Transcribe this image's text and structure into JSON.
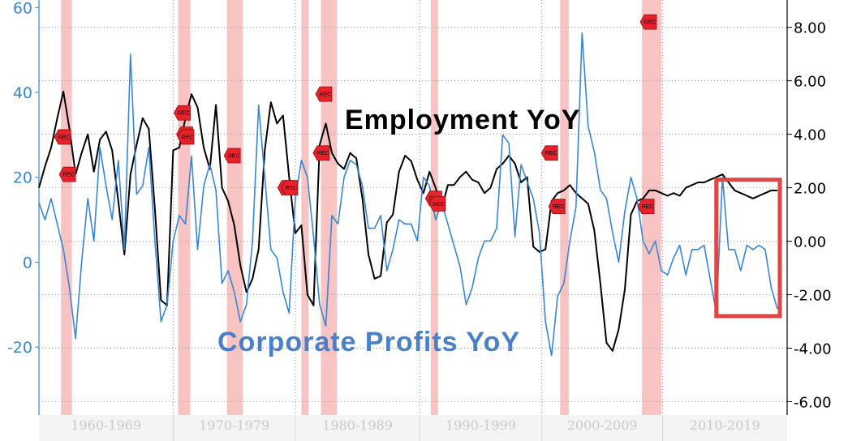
{
  "chart_data": {
    "type": "line",
    "title": "",
    "annotations": {
      "employment_label": "Employment YoY",
      "profits_label": "Corporate Profits YoY"
    },
    "colors": {
      "employment": "#000000",
      "profits": "#3a86d0",
      "recession": "#f6b9b9",
      "highlight_box": "#e04545",
      "rec_marker": "#e8212b",
      "left_axis": "#3a86d0"
    },
    "x_categories": [
      "1960-1969",
      "1970-1979",
      "1980-1989",
      "1990-1999",
      "2000-2009",
      "2010-2019"
    ],
    "x_range": [
      1958.5,
      2019.8
    ],
    "x_category_bounds": [
      1958.5,
      1969.5,
      1979.5,
      1989.7,
      1999.7,
      2009.6,
      2019.8
    ],
    "left_axis": {
      "label": "",
      "ticks": [
        "60",
        "40",
        "20",
        "0",
        "-20"
      ],
      "tick_values": [
        60,
        40,
        20,
        0,
        -20
      ],
      "range": [
        -36,
        61
      ]
    },
    "right_axis": {
      "label": "",
      "ticks": [
        "8.00",
        "6.00",
        "4.00",
        "2.00",
        "0.00",
        "-2.00",
        "-4.00",
        "-6.00"
      ],
      "tick_values": [
        8,
        6,
        4,
        2,
        0,
        -2,
        -4,
        -6
      ],
      "range": [
        -6.5,
        8.9
      ]
    },
    "grid": true,
    "recessions": [
      [
        1960.3,
        1961.2
      ],
      [
        1969.9,
        1970.9
      ],
      [
        1973.9,
        1975.2
      ],
      [
        1980.0,
        1980.6
      ],
      [
        1981.6,
        1982.9
      ],
      [
        1990.6,
        1991.2
      ],
      [
        2001.2,
        2001.9
      ],
      [
        2007.9,
        2009.5
      ]
    ],
    "rec_label": "REC",
    "rec_markers": [
      {
        "x": 1960.5,
        "y_right": 3.9
      },
      {
        "x": 1960.9,
        "y_right": 2.5
      },
      {
        "x": 1970.3,
        "y_right": 4.8
      },
      {
        "x": 1970.5,
        "y_right": 4.0
      },
      {
        "x": 1970.6,
        "y_right": 3.9
      },
      {
        "x": 1974.4,
        "y_right": 3.2
      },
      {
        "x": 1978.8,
        "y_right": 2.0
      },
      {
        "x": 1979.1,
        "y_right": 2.0
      },
      {
        "x": 1981.9,
        "y_right": 5.5
      },
      {
        "x": 1981.7,
        "y_right": 3.3
      },
      {
        "x": 1990.9,
        "y_right": 1.6
      },
      {
        "x": 1991.2,
        "y_right": 1.4
      },
      {
        "x": 2000.4,
        "y_right": 3.3
      },
      {
        "x": 2001.0,
        "y_right": 1.3
      },
      {
        "x": 2008.5,
        "y_right": 8.2
      },
      {
        "x": 2008.3,
        "y_right": 1.3
      }
    ],
    "highlight_box": {
      "x": [
        2014.0,
        2019.2
      ],
      "y_right": [
        2.3,
        -2.8
      ]
    },
    "series": [
      {
        "name": "Employment YoY",
        "axis": "right",
        "x": [
          1958.5,
          1959.0,
          1959.5,
          1960.0,
          1960.5,
          1961.0,
          1961.5,
          1962.0,
          1962.5,
          1963.0,
          1963.5,
          1964.0,
          1964.5,
          1965.0,
          1965.5,
          1966.0,
          1966.5,
          1967.0,
          1967.5,
          1968.0,
          1968.5,
          1969.0,
          1969.5,
          1970.0,
          1970.5,
          1971.0,
          1971.5,
          1972.0,
          1972.5,
          1973.0,
          1973.5,
          1974.0,
          1974.5,
          1975.0,
          1975.5,
          1976.0,
          1976.5,
          1977.0,
          1977.5,
          1978.0,
          1978.5,
          1979.0,
          1979.5,
          1980.0,
          1980.5,
          1981.0,
          1981.5,
          1982.0,
          1982.5,
          1983.0,
          1983.5,
          1984.0,
          1984.5,
          1985.0,
          1985.5,
          1986.0,
          1986.5,
          1987.0,
          1987.5,
          1988.0,
          1988.5,
          1989.0,
          1989.5,
          1990.0,
          1990.5,
          1991.0,
          1991.5,
          1992.0,
          1992.5,
          1993.0,
          1993.5,
          1994.0,
          1994.5,
          1995.0,
          1995.5,
          1996.0,
          1996.5,
          1997.0,
          1997.5,
          1998.0,
          1998.5,
          1999.0,
          1999.5,
          2000.0,
          2000.5,
          2001.0,
          2001.5,
          2002.0,
          2002.5,
          2003.0,
          2003.5,
          2004.0,
          2004.5,
          2005.0,
          2005.5,
          2006.0,
          2006.5,
          2007.0,
          2007.5,
          2008.0,
          2008.5,
          2009.0,
          2009.5,
          2010.0,
          2010.5,
          2011.0,
          2011.5,
          2012.0,
          2012.5,
          2013.0,
          2013.5,
          2014.0,
          2014.5,
          2015.0,
          2015.5,
          2016.0,
          2016.5,
          2017.0,
          2017.5,
          2018.0,
          2018.5,
          2019.0
        ],
        "values": [
          2.0,
          2.8,
          3.5,
          4.6,
          5.6,
          4.2,
          2.5,
          3.3,
          4.0,
          2.6,
          3.8,
          4.1,
          3.4,
          1.5,
          -0.5,
          2.5,
          3.6,
          4.6,
          4.2,
          1.2,
          -2.2,
          -2.4,
          3.4,
          3.5,
          4.6,
          5.5,
          5.0,
          3.5,
          2.7,
          5.1,
          2.0,
          1.5,
          0.6,
          -0.9,
          -1.9,
          -1.4,
          -0.3,
          3.4,
          5.2,
          4.4,
          4.7,
          2.4,
          0.3,
          0.6,
          -2.0,
          -2.4,
          3.6,
          4.4,
          3.3,
          2.9,
          2.7,
          3.3,
          3.1,
          1.6,
          -0.5,
          -1.4,
          -1.3,
          0.7,
          1.0,
          2.6,
          3.2,
          3.0,
          2.3,
          1.8,
          2.6,
          2.0,
          1.2,
          2.1,
          2.1,
          2.4,
          2.6,
          2.3,
          2.2,
          1.8,
          2.0,
          2.7,
          2.9,
          3.2,
          2.9,
          2.2,
          2.4,
          -0.2,
          -0.4,
          -0.3,
          1.5,
          1.8,
          1.9,
          2.1,
          1.8,
          1.6,
          1.4,
          0.4,
          -1.6,
          -3.8,
          -4.1,
          -3.3,
          -1.8,
          1.0,
          1.5,
          1.6,
          1.9,
          1.9,
          1.8,
          1.7,
          1.8,
          1.7,
          2.0,
          2.1,
          2.2,
          2.2,
          2.3,
          2.4,
          2.5,
          2.2,
          1.9,
          1.8,
          1.7,
          1.6,
          1.7,
          1.8,
          1.9,
          1.9
        ]
      },
      {
        "name": "Corporate Profits YoY",
        "axis": "left",
        "x": [
          1958.5,
          1959.0,
          1959.5,
          1960.0,
          1960.5,
          1961.0,
          1961.5,
          1962.0,
          1962.5,
          1963.0,
          1963.5,
          1964.0,
          1964.5,
          1965.0,
          1965.5,
          1966.0,
          1966.5,
          1967.0,
          1967.5,
          1968.0,
          1968.5,
          1969.0,
          1969.5,
          1970.0,
          1970.5,
          1971.0,
          1971.5,
          1972.0,
          1972.5,
          1973.0,
          1973.5,
          1974.0,
          1974.5,
          1975.0,
          1975.5,
          1976.0,
          1976.5,
          1977.0,
          1977.5,
          1978.0,
          1978.5,
          1979.0,
          1979.5,
          1980.0,
          1980.5,
          1981.0,
          1981.5,
          1982.0,
          1982.5,
          1983.0,
          1983.5,
          1984.0,
          1984.5,
          1985.0,
          1985.5,
          1986.0,
          1986.5,
          1987.0,
          1987.5,
          1988.0,
          1988.5,
          1989.0,
          1989.5,
          1990.0,
          1990.5,
          1991.0,
          1991.5,
          1992.0,
          1992.5,
          1993.0,
          1993.5,
          1994.0,
          1994.5,
          1995.0,
          1995.5,
          1996.0,
          1996.5,
          1997.0,
          1997.5,
          1998.0,
          1998.5,
          1999.0,
          1999.5,
          2000.0,
          2000.5,
          2001.0,
          2001.5,
          2002.0,
          2002.5,
          2003.0,
          2003.5,
          2004.0,
          2004.5,
          2005.0,
          2005.5,
          2006.0,
          2006.5,
          2007.0,
          2007.5,
          2008.0,
          2008.5,
          2009.0,
          2009.5,
          2010.0,
          2010.5,
          2011.0,
          2011.5,
          2012.0,
          2012.5,
          2013.0,
          2013.5,
          2014.0,
          2014.5,
          2015.0,
          2015.5,
          2016.0,
          2016.5,
          2017.0,
          2017.5,
          2018.0,
          2018.5,
          2019.0
        ],
        "values": [
          14,
          10,
          15,
          9,
          3,
          -6,
          -18,
          0,
          15,
          5,
          27,
          18,
          10,
          24,
          3,
          49,
          16,
          18,
          27,
          5,
          -14,
          -10,
          5,
          11,
          9,
          25,
          3,
          18,
          23,
          17,
          -5,
          -2,
          -7,
          -14,
          -10,
          5,
          37,
          20,
          3,
          1,
          -7,
          -12,
          15,
          24,
          20,
          6,
          -10,
          -15,
          11,
          9,
          20,
          24,
          23,
          18,
          8,
          8,
          11,
          -2,
          3,
          10,
          9,
          9,
          5,
          20,
          18,
          10,
          14,
          9,
          4,
          -1,
          -10,
          -6,
          1,
          5,
          5,
          8,
          30,
          28,
          6,
          23,
          19,
          15,
          7,
          -14,
          -22,
          -8,
          -5,
          5,
          13,
          54,
          32,
          26,
          17,
          15,
          7,
          0,
          12,
          20,
          15,
          5,
          2,
          5,
          -2,
          -3,
          1,
          4,
          -3,
          3,
          3,
          4,
          -4,
          -12,
          20,
          3,
          3,
          -2,
          4,
          3,
          4,
          3,
          -6,
          -11
        ]
      }
    ]
  }
}
